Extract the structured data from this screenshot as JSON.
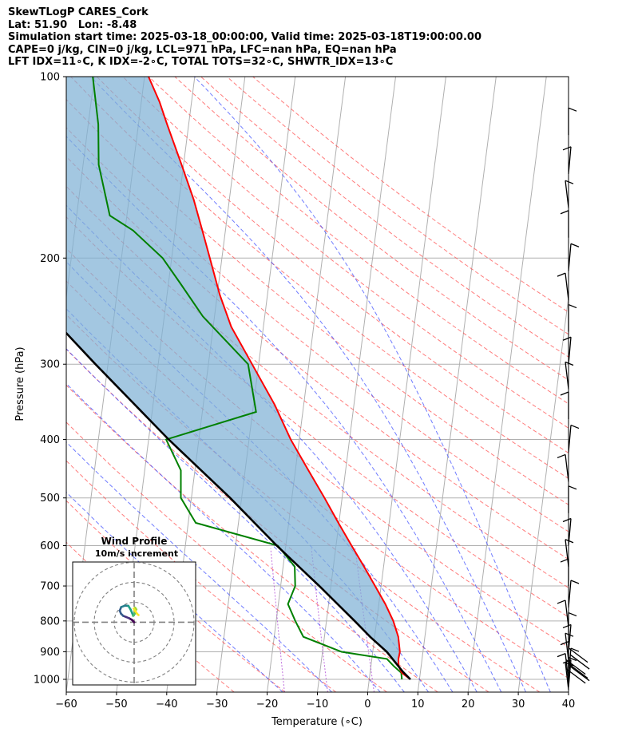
{
  "header": {
    "station": "SkewTLogP CARES_Cork",
    "location": "Lat: 51.90   Lon: -8.48",
    "times": "Simulation start time: 2025-03-18_00:00:00, Valid time: 2025-03-18T19:00:00.00",
    "indices1": "CAPE=0 j/kg, CIN=0 j/kg, LCL=971 hPa, LFC=nan hPa, EQ=nan hPa",
    "indices2": "LFT IDX=11∘C, K IDX=-2∘C, TOTAL TOTS=32∘C, SHWTR_IDX=13∘C"
  },
  "chart_data": [
    {
      "type": "line",
      "subtype": "skew-t log-p",
      "xlabel": "Temperature (∘C)",
      "ylabel": "Pressure (hPa)",
      "x_range": [
        -60,
        40
      ],
      "y_range": [
        1050,
        100
      ],
      "y_scale": "log",
      "x_ticks": [
        -60,
        -50,
        -40,
        -30,
        -20,
        -10,
        0,
        10,
        20,
        30,
        40
      ],
      "x_tick_labels": [
        "−60",
        "−50",
        "−40",
        "−30",
        "−20",
        "−10",
        "0",
        "10",
        "20",
        "30",
        "40"
      ],
      "y_ticks": [
        1000,
        900,
        800,
        700,
        600,
        500,
        400,
        300,
        200,
        100
      ],
      "grid": true,
      "series": [
        {
          "key": "temperature",
          "color": "#ff0000",
          "points": [
            [
              1000,
              8.2
            ],
            [
              975,
              6.3
            ],
            [
              950,
              5.5
            ],
            [
              925,
              5.3
            ],
            [
              900,
              5.4
            ],
            [
              850,
              4.7
            ],
            [
              800,
              3.3
            ],
            [
              750,
              1.3
            ],
            [
              700,
              -1.2
            ],
            [
              650,
              -3.9
            ],
            [
              600,
              -6.9
            ],
            [
              550,
              -10.1
            ],
            [
              500,
              -13.5
            ],
            [
              450,
              -17.4
            ],
            [
              400,
              -21.7
            ],
            [
              350,
              -25.8
            ],
            [
              300,
              -31.3
            ],
            [
              260,
              -36.4
            ],
            [
              230,
              -39.5
            ],
            [
              200,
              -42.4
            ],
            [
              180,
              -44.6
            ],
            [
              160,
              -47.1
            ],
            [
              140,
              -50.4
            ],
            [
              120,
              -54.3
            ],
            [
              110,
              -56.4
            ],
            [
              100,
              -59.2
            ]
          ]
        },
        {
          "key": "dewpoint",
          "color": "#008000",
          "points": [
            [
              1000,
              6.5
            ],
            [
              975,
              6.2
            ],
            [
              950,
              4.5
            ],
            [
              925,
              3.0
            ],
            [
              900,
              -6.2
            ],
            [
              850,
              -14.2
            ],
            [
              800,
              -16.2
            ],
            [
              750,
              -18.1
            ],
            [
              700,
              -17.1
            ],
            [
              650,
              -17.7
            ],
            [
              600,
              -21.6
            ],
            [
              550,
              -38.5
            ],
            [
              500,
              -42.1
            ],
            [
              450,
              -42.8
            ],
            [
              400,
              -46.5
            ],
            [
              380,
              -38.1
            ],
            [
              360,
              -29.3
            ],
            [
              300,
              -32.1
            ],
            [
              250,
              -42.3
            ],
            [
              220,
              -47.7
            ],
            [
              200,
              -51.8
            ],
            [
              180,
              -58.4
            ],
            [
              170,
              -63.4
            ],
            [
              140,
              -66.9
            ],
            [
              120,
              -68.0
            ],
            [
              100,
              -70.3
            ]
          ]
        },
        {
          "key": "parcel",
          "color": "#000000",
          "points": [
            [
              1000,
              8.2
            ],
            [
              971,
              6.5
            ],
            [
              900,
              2.8
            ],
            [
              850,
              -0.9
            ],
            [
              800,
              -4.4
            ],
            [
              700,
              -12.3
            ],
            [
              600,
              -21.8
            ],
            [
              500,
              -32.3
            ],
            [
              400,
              -46.0
            ],
            [
              300,
              -62.5
            ],
            [
              200,
              -85.0
            ],
            [
              150,
              -98.0
            ],
            [
              100,
              -115.0
            ]
          ]
        }
      ],
      "wind_barbs": [
        {
          "p": 1040
        },
        {
          "p": 1030
        },
        {
          "p": 1020
        },
        {
          "p": 1005
        },
        {
          "p": 985
        },
        {
          "p": 960
        },
        {
          "p": 930
        },
        {
          "p": 900
        },
        {
          "p": 860
        },
        {
          "p": 820
        },
        {
          "p": 760
        },
        {
          "p": 700
        },
        {
          "p": 650
        },
        {
          "p": 600
        },
        {
          "p": 530
        },
        {
          "p": 470
        },
        {
          "p": 420
        },
        {
          "p": 370
        },
        {
          "p": 330
        },
        {
          "p": 300
        },
        {
          "p": 265
        },
        {
          "p": 235
        },
        {
          "p": 210
        },
        {
          "p": 185
        },
        {
          "p": 165
        },
        {
          "p": 145
        },
        {
          "p": 125
        }
      ]
    },
    {
      "type": "scatter",
      "subtype": "hodograph",
      "title": "Wind Profile",
      "subtitle": "10m/s increment",
      "rings": 3,
      "points_uv": [
        [
          0,
          0
        ],
        [
          -1.1,
          1.2
        ],
        [
          -2.5,
          2.0
        ],
        [
          -4.0,
          2.6
        ],
        [
          -5.5,
          3.2
        ],
        [
          -6.6,
          4.3
        ],
        [
          -7.2,
          5.8
        ],
        [
          -6.5,
          7.6
        ],
        [
          -4.6,
          8.3
        ],
        [
          -2.9,
          8.2
        ],
        [
          -1.8,
          6.4
        ],
        [
          -1.0,
          4.6
        ],
        [
          -0.5,
          3.2
        ],
        [
          0.6,
          4.6
        ],
        [
          0.2,
          5.5
        ],
        [
          1.1,
          6.4
        ],
        [
          0.5,
          7.3
        ],
        [
          -0.2,
          6.8
        ],
        [
          1.5,
          4.2
        ],
        [
          2.2,
          3.6
        ]
      ]
    }
  ]
}
